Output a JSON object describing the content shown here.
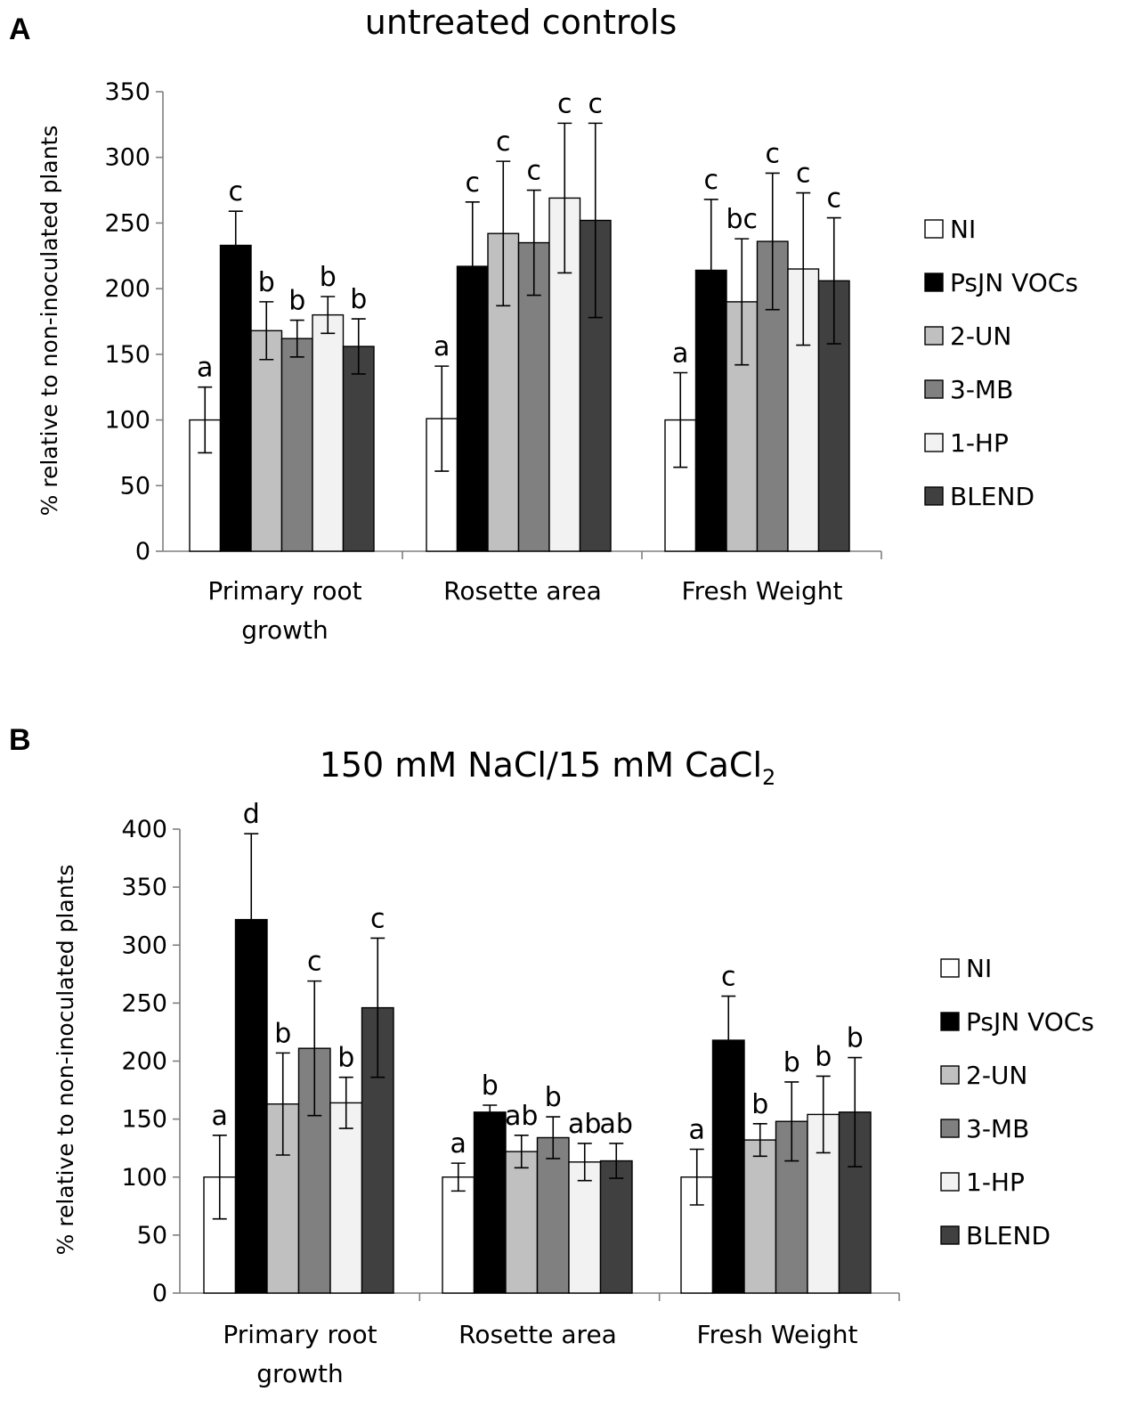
{
  "chart_data": [
    {
      "panel": "A",
      "type": "bar",
      "title": "untreated controls",
      "xlabel": "",
      "ylabel": "% relative to non-inoculated plants",
      "ylim": [
        0,
        350
      ],
      "yticks": [
        0,
        50,
        100,
        150,
        200,
        250,
        300,
        350
      ],
      "categories": [
        "Primary root growth",
        "Rosette area",
        "Fresh Weight"
      ],
      "category_lines": [
        [
          "Primary root",
          "growth"
        ],
        [
          "Rosette area"
        ],
        [
          "Fresh Weight"
        ]
      ],
      "series": [
        {
          "name": "NI",
          "color": "#ffffff",
          "values": [
            100,
            101,
            100
          ],
          "errors": [
            25,
            40,
            36
          ],
          "letters": [
            "a",
            "a",
            "a"
          ]
        },
        {
          "name": "PsJN VOCs",
          "color": "#000000",
          "values": [
            233,
            217,
            214
          ],
          "errors": [
            26,
            49,
            54
          ],
          "letters": [
            "c",
            "c",
            "c"
          ]
        },
        {
          "name": "2-UN",
          "color": "#c0c0c0",
          "values": [
            168,
            242,
            190
          ],
          "errors": [
            22,
            55,
            48
          ],
          "letters": [
            "b",
            "c",
            "bc"
          ]
        },
        {
          "name": "3-MB",
          "color": "#808080",
          "values": [
            162,
            235,
            236
          ],
          "errors": [
            14,
            40,
            52
          ],
          "letters": [
            "b",
            "c",
            "c"
          ]
        },
        {
          "name": "1-HP",
          "color": "#f2f2f2",
          "values": [
            180,
            269,
            215
          ],
          "errors": [
            14,
            57,
            58
          ],
          "letters": [
            "b",
            "c",
            "c"
          ]
        },
        {
          "name": "BLEND",
          "color": "#404040",
          "values": [
            156,
            252,
            206
          ],
          "errors": [
            21,
            74,
            48
          ],
          "letters": [
            "b",
            "c",
            "c"
          ]
        }
      ]
    },
    {
      "panel": "B",
      "type": "bar",
      "title": "150 mM NaCl/15 mM CaCl",
      "title_subscript": "2",
      "xlabel": "",
      "ylabel": "% relative to non-inoculated plants",
      "ylim": [
        0,
        400
      ],
      "yticks": [
        0,
        50,
        100,
        150,
        200,
        250,
        300,
        350,
        400
      ],
      "categories": [
        "Primary root growth",
        "Rosette area",
        "Fresh Weight"
      ],
      "category_lines": [
        [
          "Primary root",
          "growth"
        ],
        [
          "Rosette area"
        ],
        [
          "Fresh Weight"
        ]
      ],
      "series": [
        {
          "name": "NI",
          "color": "#ffffff",
          "values": [
            100,
            100,
            100
          ],
          "errors": [
            36,
            12,
            24
          ],
          "letters": [
            "a",
            "a",
            "a"
          ]
        },
        {
          "name": "PsJN VOCs",
          "color": "#000000",
          "values": [
            322,
            156,
            218
          ],
          "errors": [
            74,
            6,
            38
          ],
          "letters": [
            "d",
            "b",
            "c"
          ]
        },
        {
          "name": "2-UN",
          "color": "#c0c0c0",
          "values": [
            163,
            122,
            132
          ],
          "errors": [
            44,
            14,
            14
          ],
          "letters": [
            "b",
            "ab",
            "b"
          ]
        },
        {
          "name": "3-MB",
          "color": "#808080",
          "values": [
            211,
            134,
            148
          ],
          "errors": [
            58,
            18,
            34
          ],
          "letters": [
            "c",
            "b",
            "b"
          ]
        },
        {
          "name": "1-HP",
          "color": "#f2f2f2",
          "values": [
            164,
            113,
            154
          ],
          "errors": [
            22,
            16,
            33
          ],
          "letters": [
            "b",
            "ab",
            "b"
          ]
        },
        {
          "name": "BLEND",
          "color": "#404040",
          "values": [
            246,
            114,
            156
          ],
          "errors": [
            60,
            15,
            47
          ],
          "letters": [
            "c",
            "ab",
            "b"
          ]
        }
      ]
    }
  ]
}
